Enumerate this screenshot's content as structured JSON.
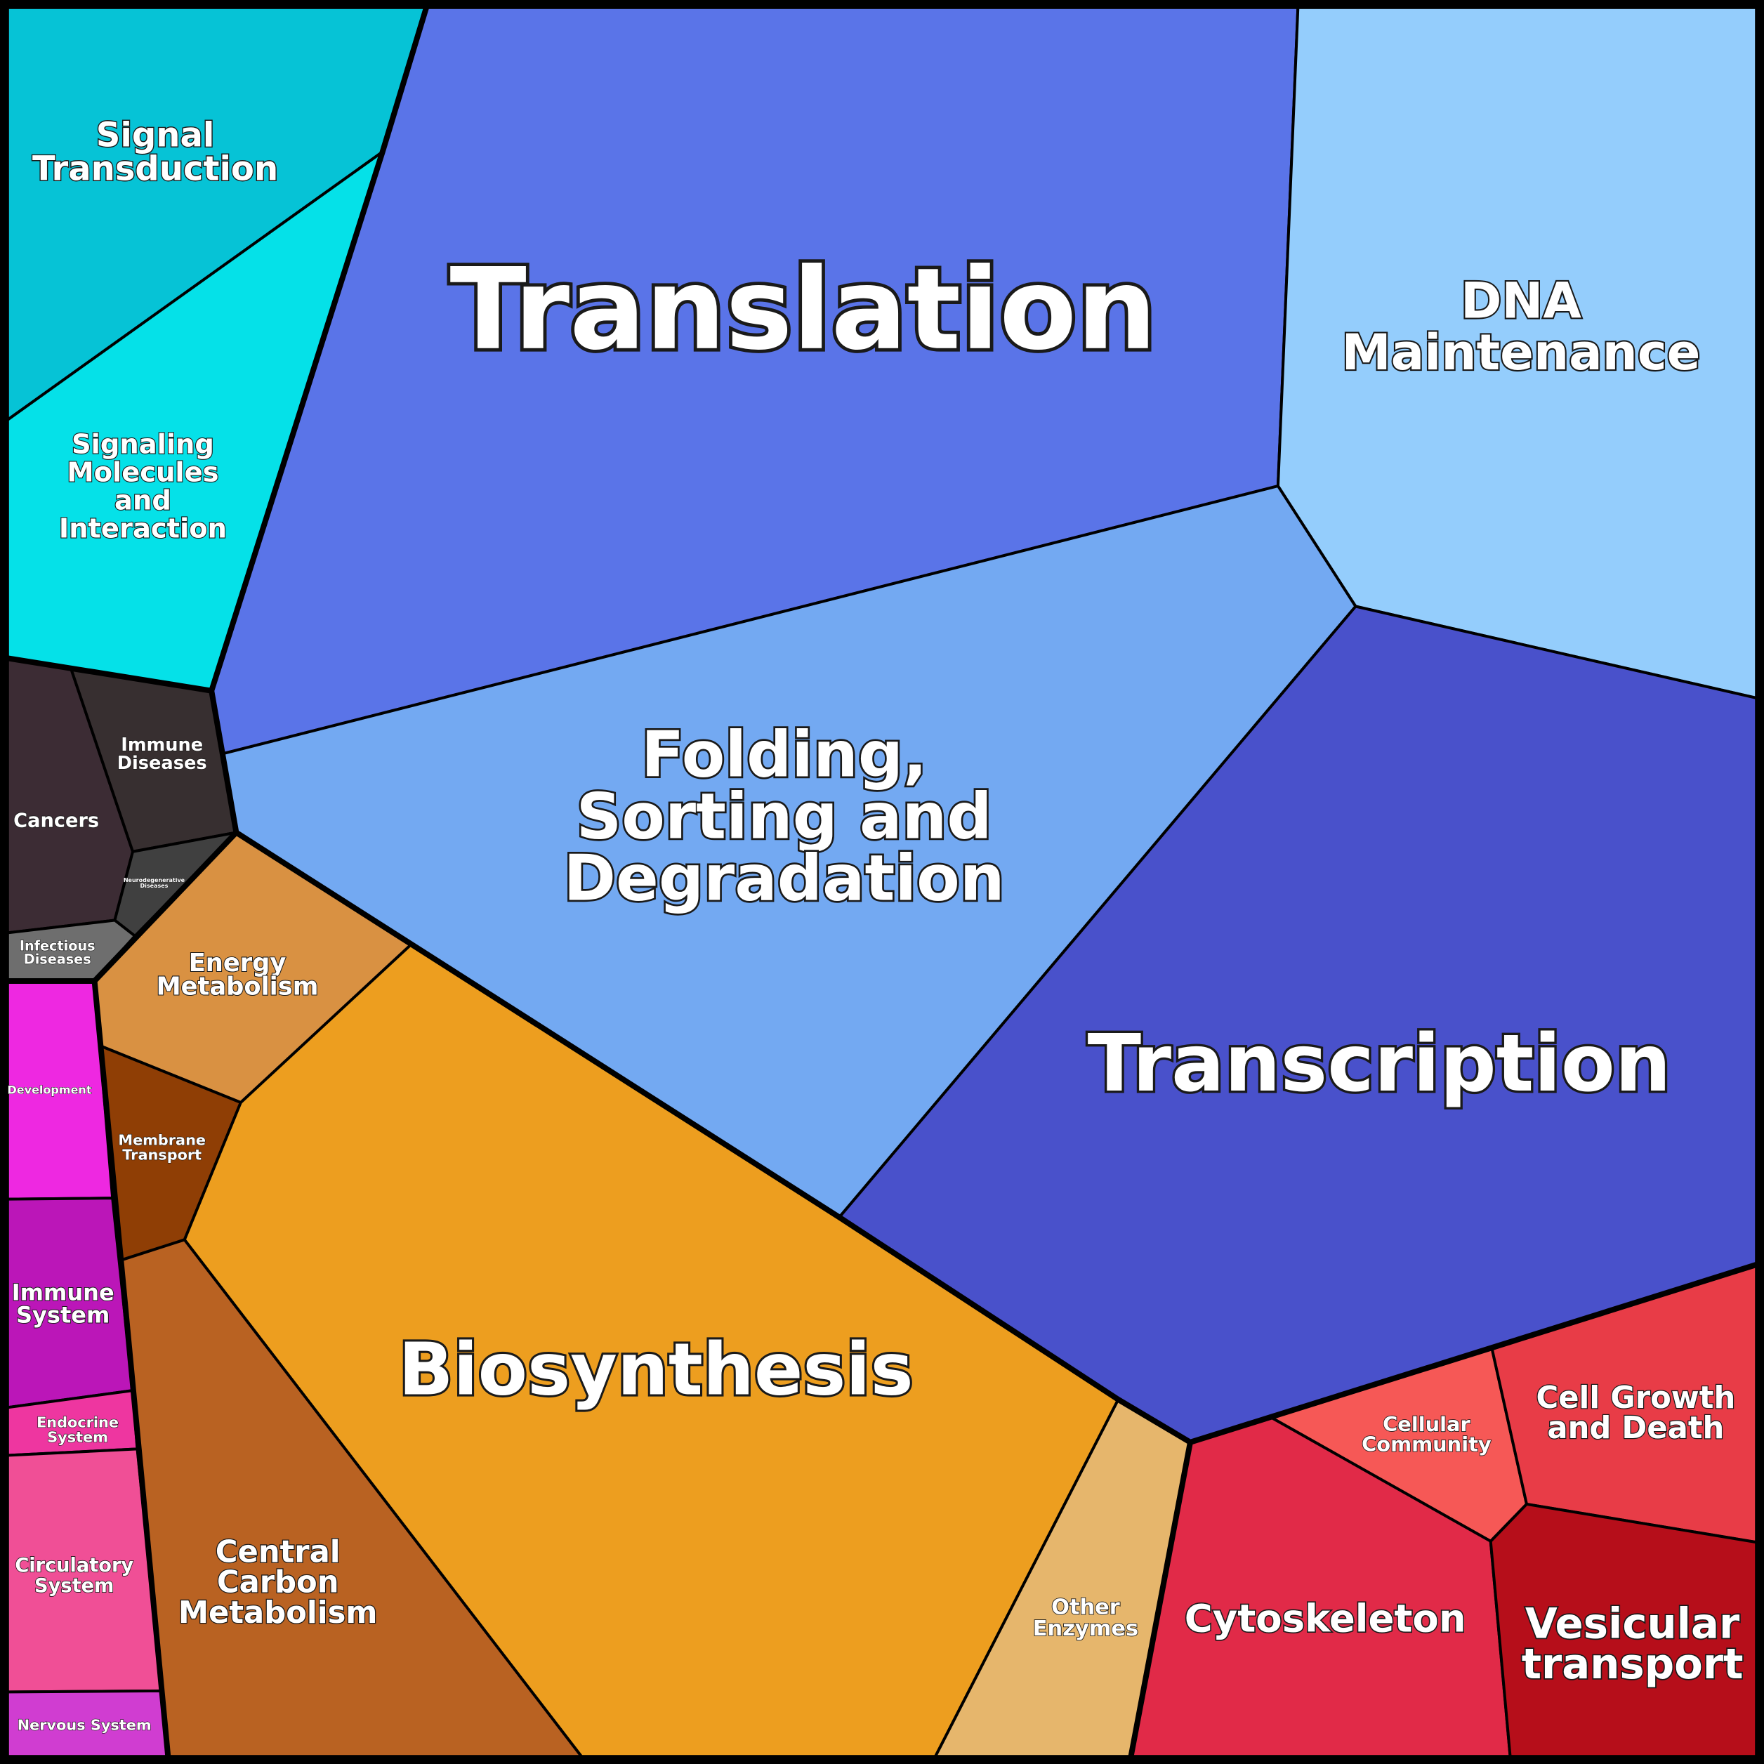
{
  "cells": [
    {
      "lines": [
        "Signal",
        "Transduction"
      ]
    },
    {
      "lines": [
        "Signaling",
        "Molecules",
        "and",
        "Interaction"
      ]
    },
    {
      "lines": [
        "Translation"
      ]
    },
    {
      "lines": [
        "DNA",
        "Maintenance"
      ]
    },
    {
      "lines": [
        "Folding,",
        "Sorting and",
        "Degradation"
      ]
    },
    {
      "lines": [
        "Transcription"
      ]
    },
    {
      "lines": [
        "Cancers"
      ]
    },
    {
      "lines": [
        "Immune",
        "Diseases"
      ]
    },
    {
      "lines": [
        "Neurodegenerative",
        "Diseases"
      ]
    },
    {
      "lines": [
        "Infectious",
        "Diseases"
      ]
    },
    {
      "lines": [
        "Energy",
        "Metabolism"
      ]
    },
    {
      "lines": [
        "Membrane",
        "Transport"
      ]
    },
    {
      "lines": [
        "Biosynthesis"
      ]
    },
    {
      "lines": [
        "Central",
        "Carbon",
        "Metabolism"
      ]
    },
    {
      "lines": [
        "Development"
      ]
    },
    {
      "lines": [
        "Immune",
        "System"
      ]
    },
    {
      "lines": [
        "Endocrine",
        "System"
      ]
    },
    {
      "lines": [
        "Circulatory",
        "System"
      ]
    },
    {
      "lines": [
        "Nervous System"
      ]
    },
    {
      "lines": [
        "Other",
        "Enzymes"
      ]
    },
    {
      "lines": [
        "Cellular",
        "Community"
      ]
    },
    {
      "lines": [
        "Cell Growth",
        "and Death"
      ]
    },
    {
      "lines": [
        "Cytoskeleton"
      ]
    },
    {
      "lines": [
        "Vesicular",
        "transport"
      ]
    }
  ]
}
